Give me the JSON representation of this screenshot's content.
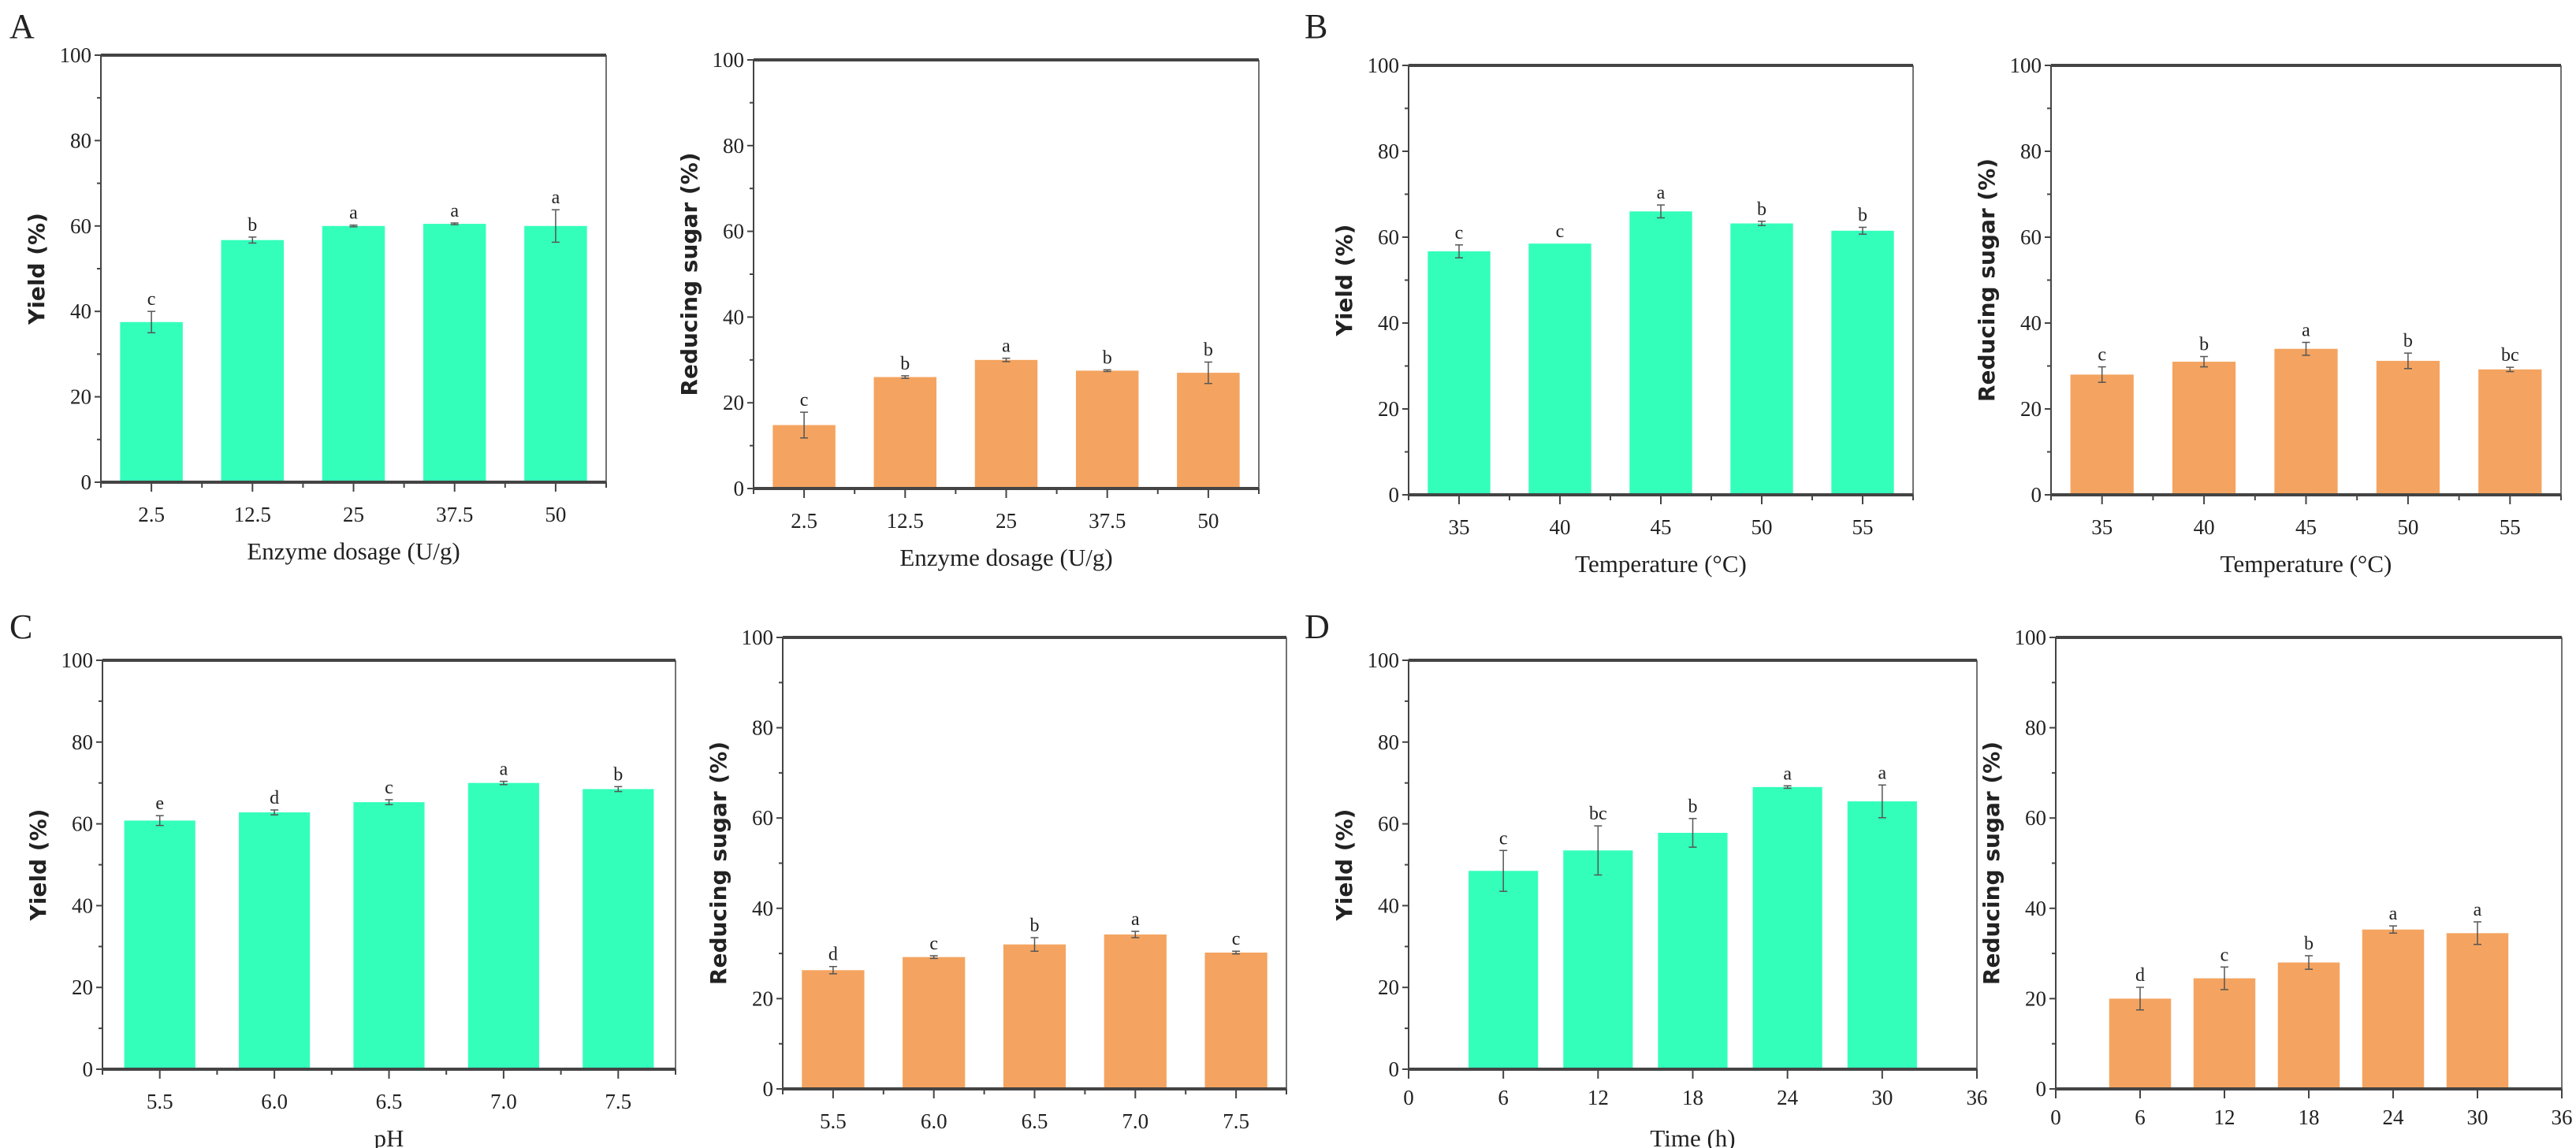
{
  "colors": {
    "yield": "#33ffbb",
    "sugar": "#f4a460",
    "axis": "#444444"
  },
  "chart_data": [
    {
      "panel": "A",
      "type": "bar",
      "title": "",
      "xlabel": "Enzyme dosage (U/g)",
      "ylabel": "Yield (%)",
      "ylim": [
        0,
        100
      ],
      "yticks": [
        "0",
        "20",
        "40",
        "60",
        "80",
        "100"
      ],
      "categories": [
        "2.5",
        "12.5",
        "25",
        "37.5",
        "50"
      ],
      "values": [
        37.5,
        56.7,
        60.0,
        60.5,
        60.0
      ],
      "errors": [
        2.5,
        0.7,
        0.2,
        0.2,
        3.8
      ],
      "letters": [
        "c",
        "b",
        "a",
        "a",
        "a"
      ],
      "series_color": "yield"
    },
    {
      "panel": "",
      "type": "bar",
      "title": "",
      "xlabel": "Enzyme dosage (U/g)",
      "ylabel": "Reducing sugar (%)",
      "ylim": [
        0,
        100
      ],
      "yticks": [
        "0",
        "20",
        "40",
        "60",
        "80",
        "100"
      ],
      "categories": [
        "2.5",
        "12.5",
        "25",
        "37.5",
        "50"
      ],
      "values": [
        14.8,
        26.0,
        30.0,
        27.5,
        27.0
      ],
      "errors": [
        3.0,
        0.3,
        0.4,
        0.2,
        2.5
      ],
      "letters": [
        "c",
        "b",
        "a",
        "b",
        "b"
      ],
      "series_color": "sugar"
    },
    {
      "panel": "B",
      "type": "bar",
      "title": "",
      "xlabel": "Temperature (°C)",
      "ylabel": "Yield (%)",
      "ylim": [
        0,
        100
      ],
      "yticks": [
        "0",
        "20",
        "40",
        "60",
        "80",
        "100"
      ],
      "categories": [
        "35",
        "40",
        "45",
        "50",
        "55"
      ],
      "values": [
        56.7,
        58.5,
        66.0,
        63.2,
        61.5
      ],
      "errors": [
        1.5,
        0.0,
        1.5,
        0.5,
        0.8
      ],
      "letters": [
        "c",
        "c",
        "a",
        "b",
        "b"
      ],
      "series_color": "yield"
    },
    {
      "panel": "",
      "type": "bar",
      "title": "",
      "xlabel": "Temperature (°C)",
      "ylabel": "Reducing sugar (%)",
      "ylim": [
        0,
        100
      ],
      "yticks": [
        "0",
        "20",
        "40",
        "60",
        "80",
        "100"
      ],
      "categories": [
        "35",
        "40",
        "45",
        "50",
        "55"
      ],
      "values": [
        28.0,
        31.0,
        34.0,
        31.2,
        29.2
      ],
      "errors": [
        1.8,
        1.2,
        1.5,
        1.8,
        0.5
      ],
      "letters": [
        "c",
        "b",
        "a",
        "b",
        "bc"
      ],
      "series_color": "sugar"
    },
    {
      "panel": "C",
      "type": "bar",
      "title": "",
      "xlabel": "pH",
      "ylabel": "Yield (%)",
      "ylim": [
        0,
        100
      ],
      "yticks": [
        "0",
        "20",
        "40",
        "60",
        "80",
        "100"
      ],
      "categories": [
        "5.5",
        "6.0",
        "6.5",
        "7.0",
        "7.5"
      ],
      "values": [
        60.8,
        62.8,
        65.3,
        70.0,
        68.5
      ],
      "errors": [
        1.2,
        0.6,
        0.6,
        0.4,
        0.6
      ],
      "letters": [
        "e",
        "d",
        "c",
        "a",
        "b"
      ],
      "series_color": "yield"
    },
    {
      "panel": "",
      "type": "bar",
      "title": "",
      "xlabel": "pH",
      "ylabel": "Reducing sugar (%)",
      "ylim": [
        0,
        100
      ],
      "yticks": [
        "0",
        "20",
        "40",
        "60",
        "80",
        "100"
      ],
      "categories": [
        "5.5",
        "6.0",
        "6.5",
        "7.0",
        "7.5"
      ],
      "values": [
        26.3,
        29.2,
        32.0,
        34.2,
        30.2
      ],
      "errors": [
        0.8,
        0.3,
        1.5,
        0.7,
        0.3
      ],
      "letters": [
        "d",
        "c",
        "b",
        "a",
        "c"
      ],
      "series_color": "sugar"
    },
    {
      "panel": "D",
      "type": "bar",
      "title": "",
      "xlabel": "Time (h)",
      "ylabel": "Yield (%)",
      "ylim": [
        0,
        100
      ],
      "xlim": [
        0,
        36
      ],
      "yticks": [
        "0",
        "20",
        "40",
        "60",
        "80",
        "100"
      ],
      "xticks": [
        "0",
        "6",
        "12",
        "18",
        "24",
        "30",
        "36"
      ],
      "x": [
        6,
        12,
        18,
        24,
        30
      ],
      "values": [
        48.5,
        53.5,
        57.8,
        69.0,
        65.5
      ],
      "errors": [
        5.0,
        6.0,
        3.5,
        0.3,
        4.0
      ],
      "letters": [
        "c",
        "bc",
        "b",
        "a",
        "a"
      ],
      "series_color": "yield"
    },
    {
      "panel": "",
      "type": "bar",
      "title": "",
      "xlabel": "Time (h)",
      "ylabel": "Reducing sugar (%)",
      "ylim": [
        0,
        100
      ],
      "xlim": [
        0,
        36
      ],
      "yticks": [
        "0",
        "20",
        "40",
        "60",
        "80",
        "100"
      ],
      "xticks": [
        "0",
        "6",
        "12",
        "18",
        "24",
        "30",
        "36"
      ],
      "x": [
        6,
        12,
        18,
        24,
        30
      ],
      "values": [
        20.0,
        24.5,
        28.0,
        35.3,
        34.5
      ],
      "errors": [
        2.5,
        2.5,
        1.5,
        0.8,
        2.5
      ],
      "letters": [
        "d",
        "c",
        "b",
        "a",
        "a"
      ],
      "series_color": "sugar"
    }
  ]
}
